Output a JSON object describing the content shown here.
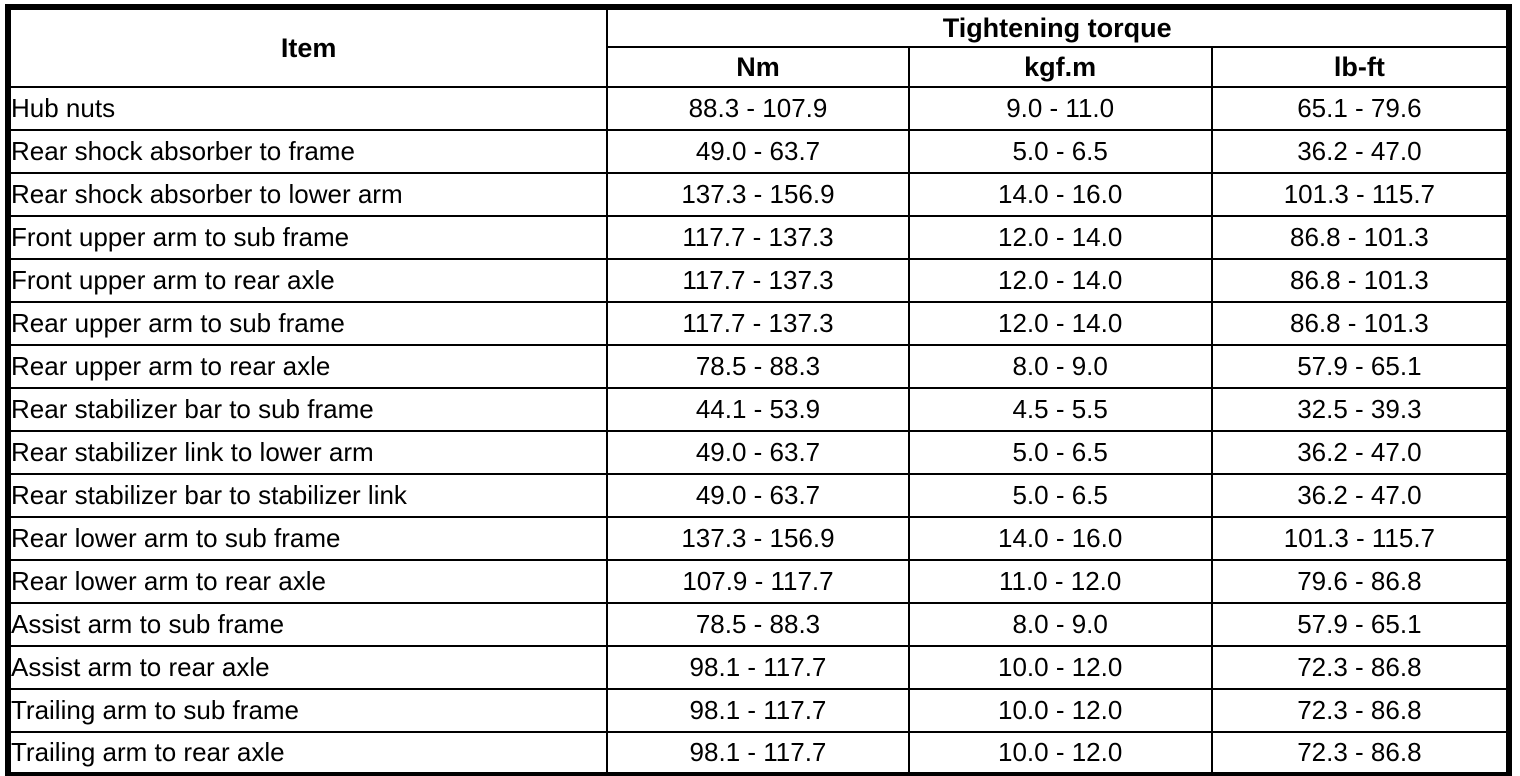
{
  "colors": {
    "border": "#000000",
    "background": "#ffffff",
    "text": "#000000"
  },
  "table": {
    "columns": {
      "item": "Item",
      "group": "Tightening torque",
      "units": [
        "Nm",
        "kgf.m",
        "lb-ft"
      ]
    },
    "rows": [
      {
        "item": "Hub nuts",
        "nm": "88.3 - 107.9",
        "kgfm": "9.0 - 11.0",
        "lbft": "65.1 - 79.6"
      },
      {
        "item": "Rear shock absorber to frame",
        "nm": "49.0 - 63.7",
        "kgfm": "5.0 - 6.5",
        "lbft": "36.2 - 47.0"
      },
      {
        "item": "Rear shock absorber to lower arm",
        "nm": "137.3 - 156.9",
        "kgfm": "14.0 - 16.0",
        "lbft": "101.3 - 115.7"
      },
      {
        "item": "Front upper arm to sub frame",
        "nm": "117.7 - 137.3",
        "kgfm": "12.0 - 14.0",
        "lbft": "86.8 - 101.3"
      },
      {
        "item": "Front upper arm to rear axle",
        "nm": "117.7 - 137.3",
        "kgfm": "12.0 - 14.0",
        "lbft": "86.8 - 101.3"
      },
      {
        "item": "Rear upper arm to sub frame",
        "nm": "117.7 - 137.3",
        "kgfm": "12.0 - 14.0",
        "lbft": "86.8 - 101.3"
      },
      {
        "item": "Rear upper arm to rear axle",
        "nm": "78.5 - 88.3",
        "kgfm": "8.0 - 9.0",
        "lbft": "57.9 - 65.1"
      },
      {
        "item": "Rear stabilizer bar to sub frame",
        "nm": "44.1 - 53.9",
        "kgfm": "4.5 - 5.5",
        "lbft": "32.5 - 39.3"
      },
      {
        "item": "Rear stabilizer link to lower arm",
        "nm": "49.0 - 63.7",
        "kgfm": "5.0 - 6.5",
        "lbft": "36.2 - 47.0"
      },
      {
        "item": "Rear stabilizer bar to stabilizer link",
        "nm": "49.0 - 63.7",
        "kgfm": "5.0 - 6.5",
        "lbft": "36.2 - 47.0"
      },
      {
        "item": "Rear lower arm to sub frame",
        "nm": "137.3 - 156.9",
        "kgfm": "14.0 - 16.0",
        "lbft": "101.3 - 115.7"
      },
      {
        "item": "Rear lower arm to rear axle",
        "nm": "107.9 - 117.7",
        "kgfm": "11.0 - 12.0",
        "lbft": "79.6 - 86.8"
      },
      {
        "item": "Assist arm to sub frame",
        "nm": "78.5 - 88.3",
        "kgfm": "8.0 - 9.0",
        "lbft": "57.9 - 65.1"
      },
      {
        "item": "Assist arm to rear axle",
        "nm": "98.1 - 117.7",
        "kgfm": "10.0 - 12.0",
        "lbft": "72.3 - 86.8"
      },
      {
        "item": "Trailing arm to sub frame",
        "nm": "98.1 - 117.7",
        "kgfm": "10.0 - 12.0",
        "lbft": "72.3 - 86.8"
      },
      {
        "item": "Trailing arm to rear axle",
        "nm": "98.1 - 117.7",
        "kgfm": "10.0 - 12.0",
        "lbft": "72.3 - 86.8"
      }
    ]
  },
  "chart_data": {
    "type": "table",
    "title": "Tightening torque",
    "columns": [
      "Item",
      "Nm",
      "kgf.m",
      "lb-ft"
    ],
    "rows": [
      [
        "Hub nuts",
        "88.3 - 107.9",
        "9.0 - 11.0",
        "65.1 - 79.6"
      ],
      [
        "Rear shock absorber to frame",
        "49.0 - 63.7",
        "5.0 - 6.5",
        "36.2 - 47.0"
      ],
      [
        "Rear shock absorber to lower arm",
        "137.3 - 156.9",
        "14.0 - 16.0",
        "101.3 - 115.7"
      ],
      [
        "Front upper arm to sub frame",
        "117.7 - 137.3",
        "12.0 - 14.0",
        "86.8 - 101.3"
      ],
      [
        "Front upper arm to rear axle",
        "117.7 - 137.3",
        "12.0 - 14.0",
        "86.8 - 101.3"
      ],
      [
        "Rear upper arm to sub frame",
        "117.7 - 137.3",
        "12.0 - 14.0",
        "86.8 - 101.3"
      ],
      [
        "Rear upper arm to rear axle",
        "78.5 - 88.3",
        "8.0 - 9.0",
        "57.9 - 65.1"
      ],
      [
        "Rear stabilizer bar to sub frame",
        "44.1 - 53.9",
        "4.5 - 5.5",
        "32.5 - 39.3"
      ],
      [
        "Rear stabilizer link to lower arm",
        "49.0 - 63.7",
        "5.0 - 6.5",
        "36.2 - 47.0"
      ],
      [
        "Rear stabilizer bar to stabilizer link",
        "49.0 - 63.7",
        "5.0 - 6.5",
        "36.2 - 47.0"
      ],
      [
        "Rear lower arm to sub frame",
        "137.3 - 156.9",
        "14.0 - 16.0",
        "101.3 - 115.7"
      ],
      [
        "Rear lower arm to rear axle",
        "107.9 - 117.7",
        "11.0 - 12.0",
        "79.6 - 86.8"
      ],
      [
        "Assist arm to sub frame",
        "78.5 - 88.3",
        "8.0 - 9.0",
        "57.9 - 65.1"
      ],
      [
        "Assist arm to rear axle",
        "98.1 - 117.7",
        "10.0 - 12.0",
        "72.3 - 86.8"
      ],
      [
        "Trailing arm to sub frame",
        "98.1 - 117.7",
        "10.0 - 12.0",
        "72.3 - 86.8"
      ],
      [
        "Trailing arm to rear axle",
        "98.1 - 117.7",
        "10.0 - 12.0",
        "72.3 - 86.8"
      ]
    ]
  }
}
